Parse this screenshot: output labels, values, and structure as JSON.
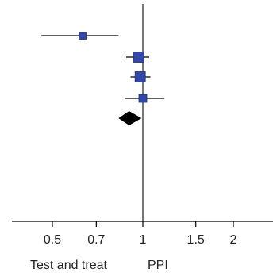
{
  "chart_data": {
    "type": "forest",
    "scale": "log",
    "xlim": [
      0.35,
      3.0
    ],
    "ticks": [
      {
        "value": 0.5,
        "label": "0.5"
      },
      {
        "value": 0.7,
        "label": "0.7"
      },
      {
        "value": 1,
        "label": "1"
      },
      {
        "value": 1.5,
        "label": "1.5"
      },
      {
        "value": 2,
        "label": "2"
      }
    ],
    "reference_line": 1,
    "studies": [
      {
        "estimate": 0.63,
        "lower": 0.46,
        "upper": 0.83,
        "weight": "small"
      },
      {
        "estimate": 0.97,
        "lower": 0.88,
        "upper": 1.05,
        "weight": "large"
      },
      {
        "estimate": 0.98,
        "lower": 0.91,
        "upper": 1.06,
        "weight": "large"
      },
      {
        "estimate": 1.0,
        "lower": 0.87,
        "upper": 1.18,
        "weight": "medium"
      }
    ],
    "pooled": {
      "estimate": 0.9,
      "lower": 0.83,
      "upper": 0.99
    },
    "favours": {
      "left": "Test and treat",
      "right": "PPI"
    },
    "colors": {
      "marker": "#3347a6",
      "marker_edge": "#1f2c6e",
      "line": "#000000",
      "diamond": "#000000",
      "axis": "#000000"
    }
  }
}
